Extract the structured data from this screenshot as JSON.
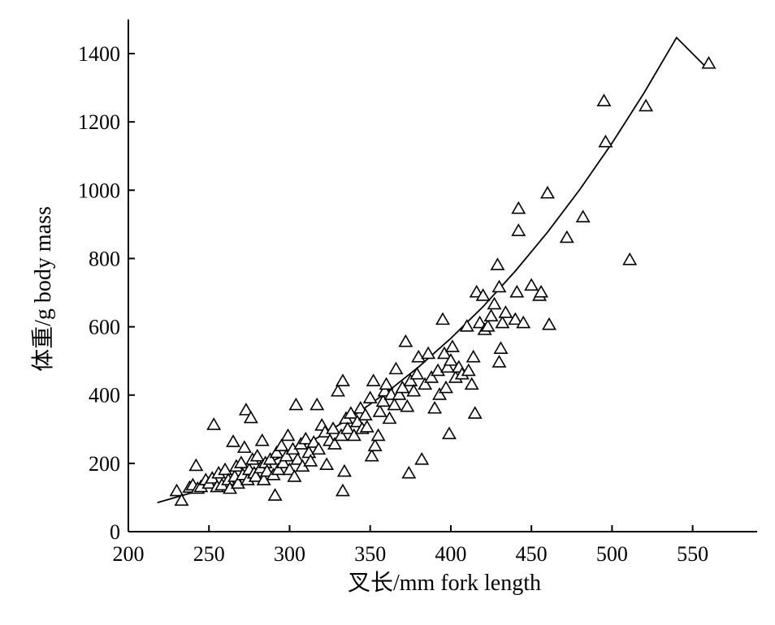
{
  "chart_data": {
    "type": "scatter",
    "title": "",
    "xlabel": "叉长/mm fork length",
    "ylabel": "体重/g body mass",
    "xlim": [
      200,
      590
    ],
    "ylim": [
      0,
      1500
    ],
    "xticks": [
      200,
      250,
      300,
      350,
      400,
      450,
      500,
      550
    ],
    "yticks": [
      0,
      200,
      400,
      600,
      800,
      1000,
      1200,
      1400
    ],
    "grid": false,
    "legend": "none",
    "marker": "open-triangle",
    "color": "#000000",
    "series": [
      {
        "points": [
          [
            230,
            118
          ],
          [
            233,
            90
          ],
          [
            238,
            128
          ],
          [
            240,
            135
          ],
          [
            242,
            192
          ],
          [
            243,
            125
          ],
          [
            245,
            130
          ],
          [
            248,
            150
          ],
          [
            250,
            140
          ],
          [
            252,
            155
          ],
          [
            253,
            312
          ],
          [
            255,
            130
          ],
          [
            256,
            170
          ],
          [
            258,
            135
          ],
          [
            260,
            180
          ],
          [
            262,
            150
          ],
          [
            263,
            125
          ],
          [
            265,
            262
          ],
          [
            266,
            160
          ],
          [
            267,
            190
          ],
          [
            268,
            140
          ],
          [
            270,
            200
          ],
          [
            271,
            165
          ],
          [
            272,
            245
          ],
          [
            273,
            355
          ],
          [
            274,
            150
          ],
          [
            275,
            180
          ],
          [
            276,
            332
          ],
          [
            277,
            210
          ],
          [
            278,
            170
          ],
          [
            279,
            160
          ],
          [
            280,
            220
          ],
          [
            282,
            185
          ],
          [
            283,
            265
          ],
          [
            284,
            150
          ],
          [
            285,
            200
          ],
          [
            286,
            175
          ],
          [
            288,
            210
          ],
          [
            290,
            165
          ],
          [
            291,
            105
          ],
          [
            292,
            230
          ],
          [
            293,
            180
          ],
          [
            295,
            250
          ],
          [
            296,
            200
          ],
          [
            298,
            220
          ],
          [
            299,
            280
          ],
          [
            300,
            180
          ],
          [
            302,
            240
          ],
          [
            303,
            160
          ],
          [
            304,
            370
          ],
          [
            305,
            210
          ],
          [
            307,
            255
          ],
          [
            308,
            190
          ],
          [
            310,
            270
          ],
          [
            312,
            230
          ],
          [
            313,
            205
          ],
          [
            315,
            260
          ],
          [
            317,
            370
          ],
          [
            318,
            240
          ],
          [
            320,
            310
          ],
          [
            322,
            290
          ],
          [
            323,
            195
          ],
          [
            325,
            265
          ],
          [
            327,
            300
          ],
          [
            328,
            255
          ],
          [
            330,
            410
          ],
          [
            332,
            280
          ],
          [
            333,
            440
          ],
          [
            334,
            175
          ],
          [
            335,
            330
          ],
          [
            333,
            118
          ],
          [
            336,
            300
          ],
          [
            338,
            345
          ],
          [
            340,
            280
          ],
          [
            342,
            320
          ],
          [
            344,
            360
          ],
          [
            345,
            300
          ],
          [
            347,
            340
          ],
          [
            348,
            305
          ],
          [
            350,
            390
          ],
          [
            351,
            220
          ],
          [
            352,
            440
          ],
          [
            353,
            250
          ],
          [
            355,
            280
          ],
          [
            356,
            350
          ],
          [
            358,
            380
          ],
          [
            359,
            410
          ],
          [
            360,
            430
          ],
          [
            362,
            330
          ],
          [
            363,
            400
          ],
          [
            365,
            370
          ],
          [
            366,
            475
          ],
          [
            368,
            400
          ],
          [
            370,
            420
          ],
          [
            372,
            555
          ],
          [
            373,
            365
          ],
          [
            374,
            170
          ],
          [
            375,
            440
          ],
          [
            377,
            410
          ],
          [
            379,
            460
          ],
          [
            380,
            510
          ],
          [
            382,
            210
          ],
          [
            384,
            430
          ],
          [
            386,
            520
          ],
          [
            388,
            450
          ],
          [
            390,
            360
          ],
          [
            392,
            470
          ],
          [
            393,
            400
          ],
          [
            395,
            620
          ],
          [
            396,
            520
          ],
          [
            397,
            420
          ],
          [
            398,
            480
          ],
          [
            399,
            285
          ],
          [
            400,
            500
          ],
          [
            401,
            540
          ],
          [
            403,
            450
          ],
          [
            405,
            480
          ],
          [
            407,
            460
          ],
          [
            410,
            600
          ],
          [
            411,
            470
          ],
          [
            413,
            430
          ],
          [
            414,
            510
          ],
          [
            415,
            345
          ],
          [
            416,
            700
          ],
          [
            418,
            610
          ],
          [
            420,
            690
          ],
          [
            421,
            590
          ],
          [
            423,
            600
          ],
          [
            425,
            630
          ],
          [
            427,
            665
          ],
          [
            429,
            780
          ],
          [
            430,
            715
          ],
          [
            430,
            495
          ],
          [
            431,
            535
          ],
          [
            432,
            610
          ],
          [
            434,
            640
          ],
          [
            440,
            620
          ],
          [
            441,
            700
          ],
          [
            442,
            945
          ],
          [
            442,
            880
          ],
          [
            445,
            610
          ],
          [
            450,
            720
          ],
          [
            455,
            690
          ],
          [
            456,
            700
          ],
          [
            460,
            990
          ],
          [
            461,
            605
          ],
          [
            472,
            860
          ],
          [
            482,
            920
          ],
          [
            495,
            1260
          ],
          [
            496,
            1140
          ],
          [
            511,
            795
          ],
          [
            521,
            1245
          ],
          [
            560,
            1370
          ]
        ],
        "curve": [
          [
            218,
            85
          ],
          [
            240,
            115
          ],
          [
            260,
            148
          ],
          [
            280,
            186
          ],
          [
            300,
            231
          ],
          [
            320,
            282
          ],
          [
            340,
            340
          ],
          [
            360,
            407
          ],
          [
            380,
            482
          ],
          [
            400,
            566
          ],
          [
            420,
            659
          ],
          [
            440,
            763
          ],
          [
            460,
            877
          ],
          [
            480,
            1002
          ],
          [
            500,
            1138
          ],
          [
            520,
            1286
          ],
          [
            540,
            1447
          ],
          [
            558,
            1362
          ]
        ]
      }
    ]
  }
}
